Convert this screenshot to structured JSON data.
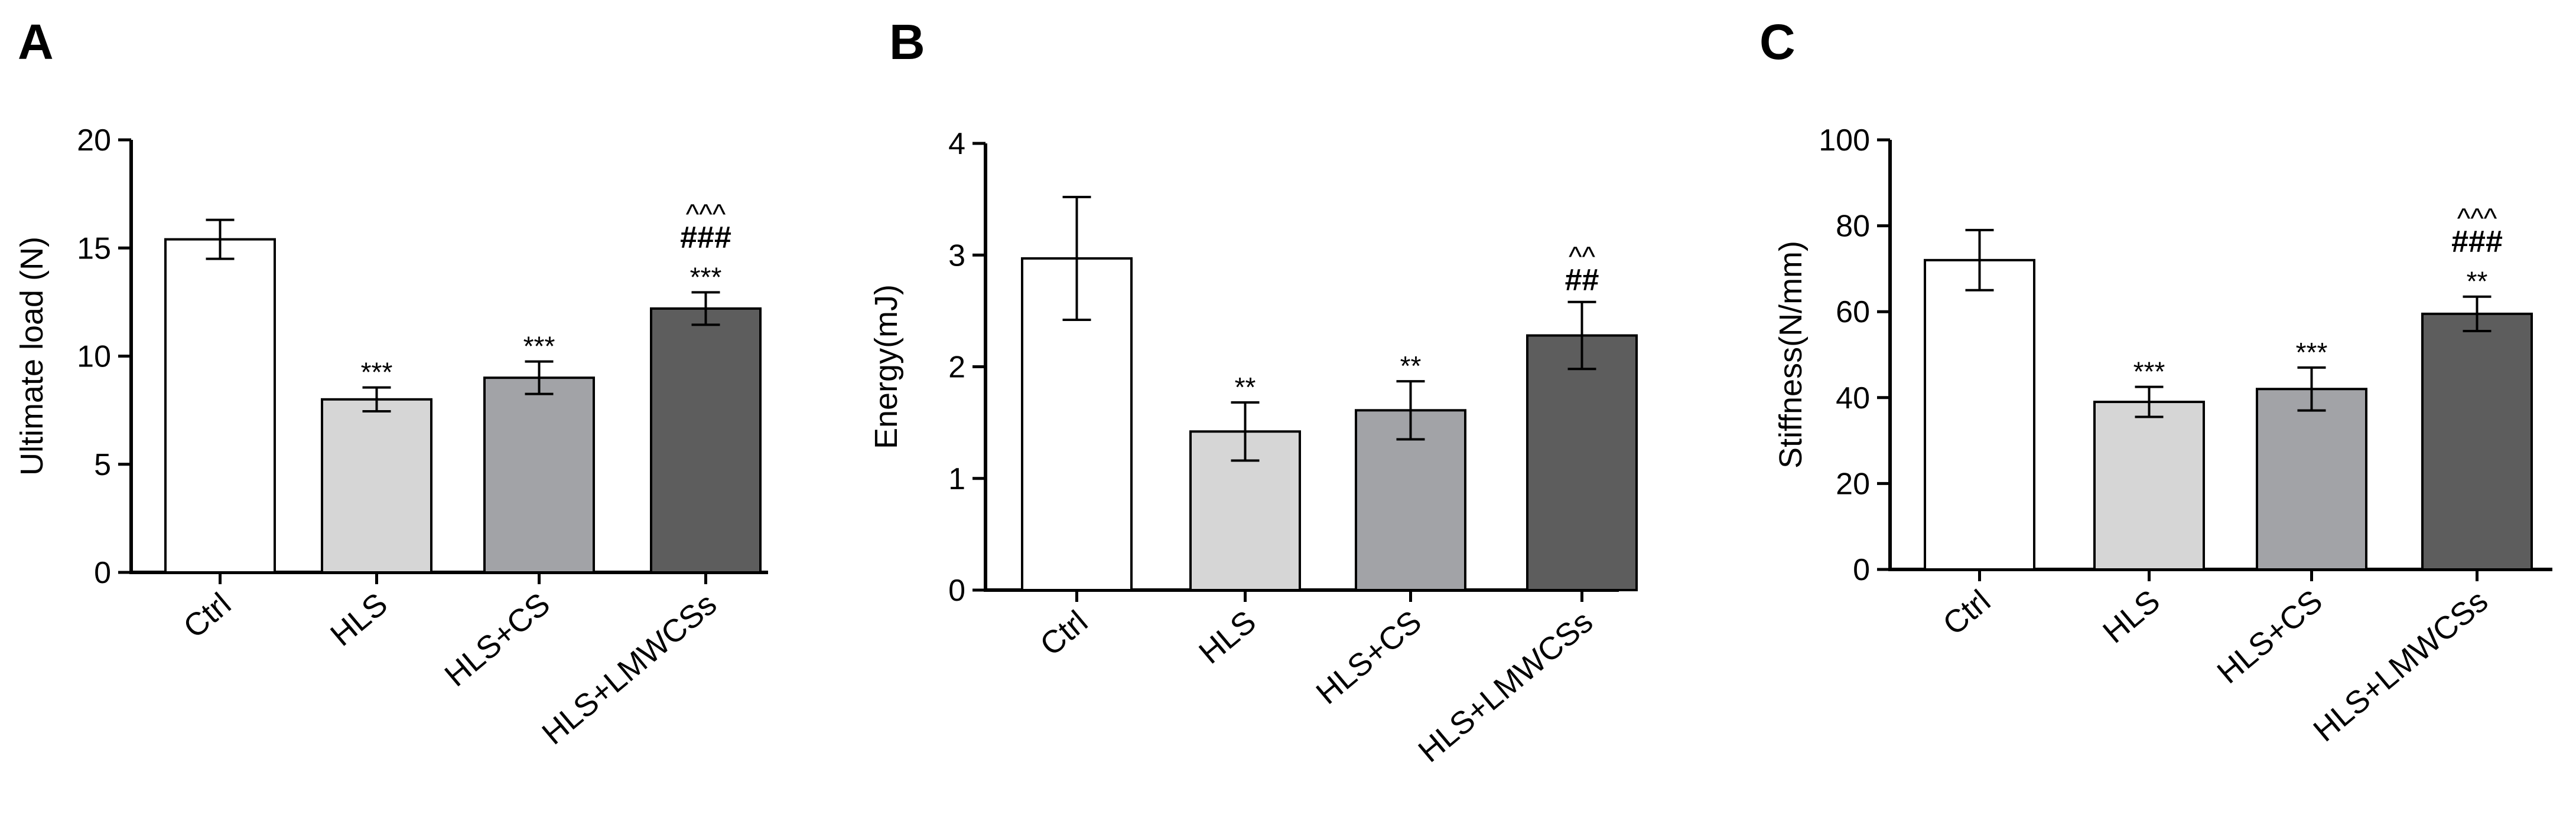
{
  "chart_data": [
    {
      "panel": "A",
      "type": "bar",
      "ylabel": "Ultimate load (N)",
      "ylim": [
        0,
        20
      ],
      "yticks": [
        0,
        5,
        10,
        15,
        20
      ],
      "categories": [
        "Ctrl",
        "HLS",
        "HLS+CS",
        "HLS+LMWCSs"
      ],
      "values": [
        15.4,
        8.0,
        9.0,
        12.2
      ],
      "errors": [
        0.9,
        0.55,
        0.75,
        0.75
      ],
      "significance": [
        [],
        [
          "***"
        ],
        [
          "***"
        ],
        [
          "***",
          "###",
          "^^^"
        ]
      ]
    },
    {
      "panel": "B",
      "type": "bar",
      "ylabel": "Energy(mJ)",
      "ylim": [
        0,
        4
      ],
      "yticks": [
        0,
        1,
        2,
        3,
        4
      ],
      "categories": [
        "Ctrl",
        "HLS",
        "HLS+CS",
        "HLS+LMWCSs"
      ],
      "values": [
        2.97,
        1.42,
        1.61,
        2.28
      ],
      "errors": [
        0.55,
        0.26,
        0.26,
        0.3
      ],
      "significance": [
        [],
        [
          "**"
        ],
        [
          "**"
        ],
        [
          "##",
          "^^"
        ]
      ]
    },
    {
      "panel": "C",
      "type": "bar",
      "ylabel": "Stiffness(N/mm)",
      "ylim": [
        0,
        100
      ],
      "yticks": [
        0,
        20,
        40,
        60,
        80,
        100
      ],
      "categories": [
        "Ctrl",
        "HLS",
        "HLS+CS",
        "HLS+LMWCSs"
      ],
      "values": [
        72,
        39,
        42,
        59.5
      ],
      "errors": [
        7,
        3.5,
        5,
        4
      ],
      "significance": [
        [],
        [
          "***"
        ],
        [
          "***"
        ],
        [
          "**",
          "###",
          "^^^"
        ]
      ]
    }
  ],
  "colors": {
    "bars": [
      "#ffffff",
      "#d6d6d6",
      "#a2a3a7",
      "#5d5d5d"
    ],
    "axis": "#000000"
  }
}
